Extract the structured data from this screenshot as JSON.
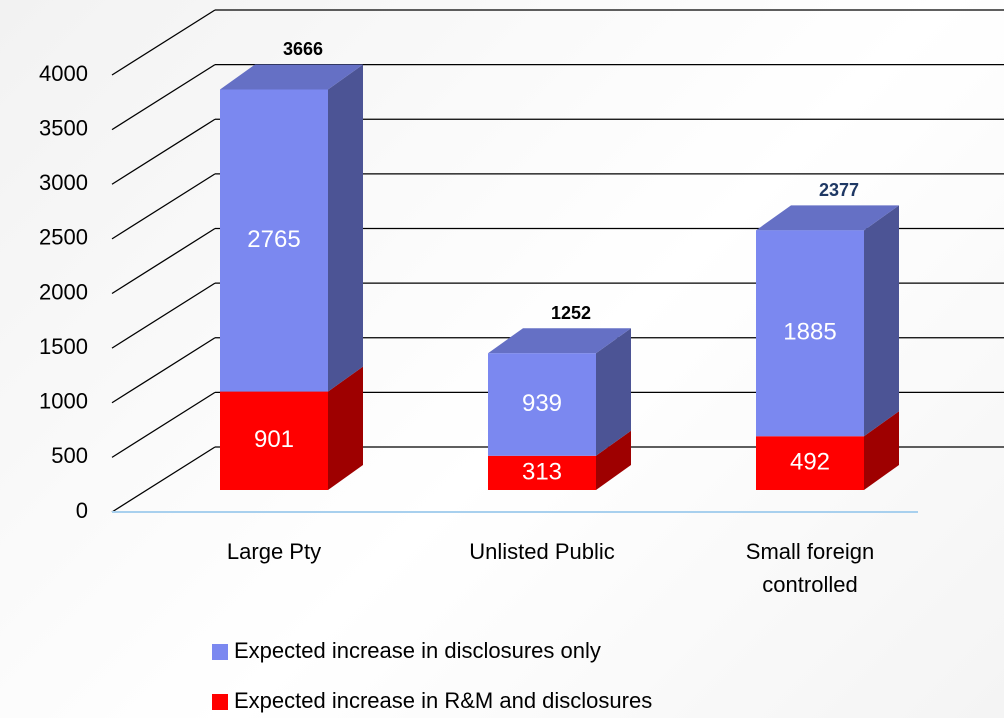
{
  "chart_data": {
    "type": "bar3d_stacked",
    "categories": [
      "Large Pty",
      "Unlisted Public",
      "Small foreign controlled"
    ],
    "series": [
      {
        "name": "Expected increase in disclosures only",
        "color": "#7b88f0",
        "values": [
          2765,
          939,
          1885
        ]
      },
      {
        "name": "Expected increase in R&M and disclosures",
        "color": "#ff0000",
        "values": [
          901,
          313,
          492
        ]
      }
    ],
    "totals": [
      3666,
      1252,
      2377
    ],
    "ylim": [
      0,
      4000
    ],
    "yticks": [
      0,
      500,
      1000,
      1500,
      2000,
      2500,
      3000,
      3500,
      4000
    ],
    "grid": true
  }
}
